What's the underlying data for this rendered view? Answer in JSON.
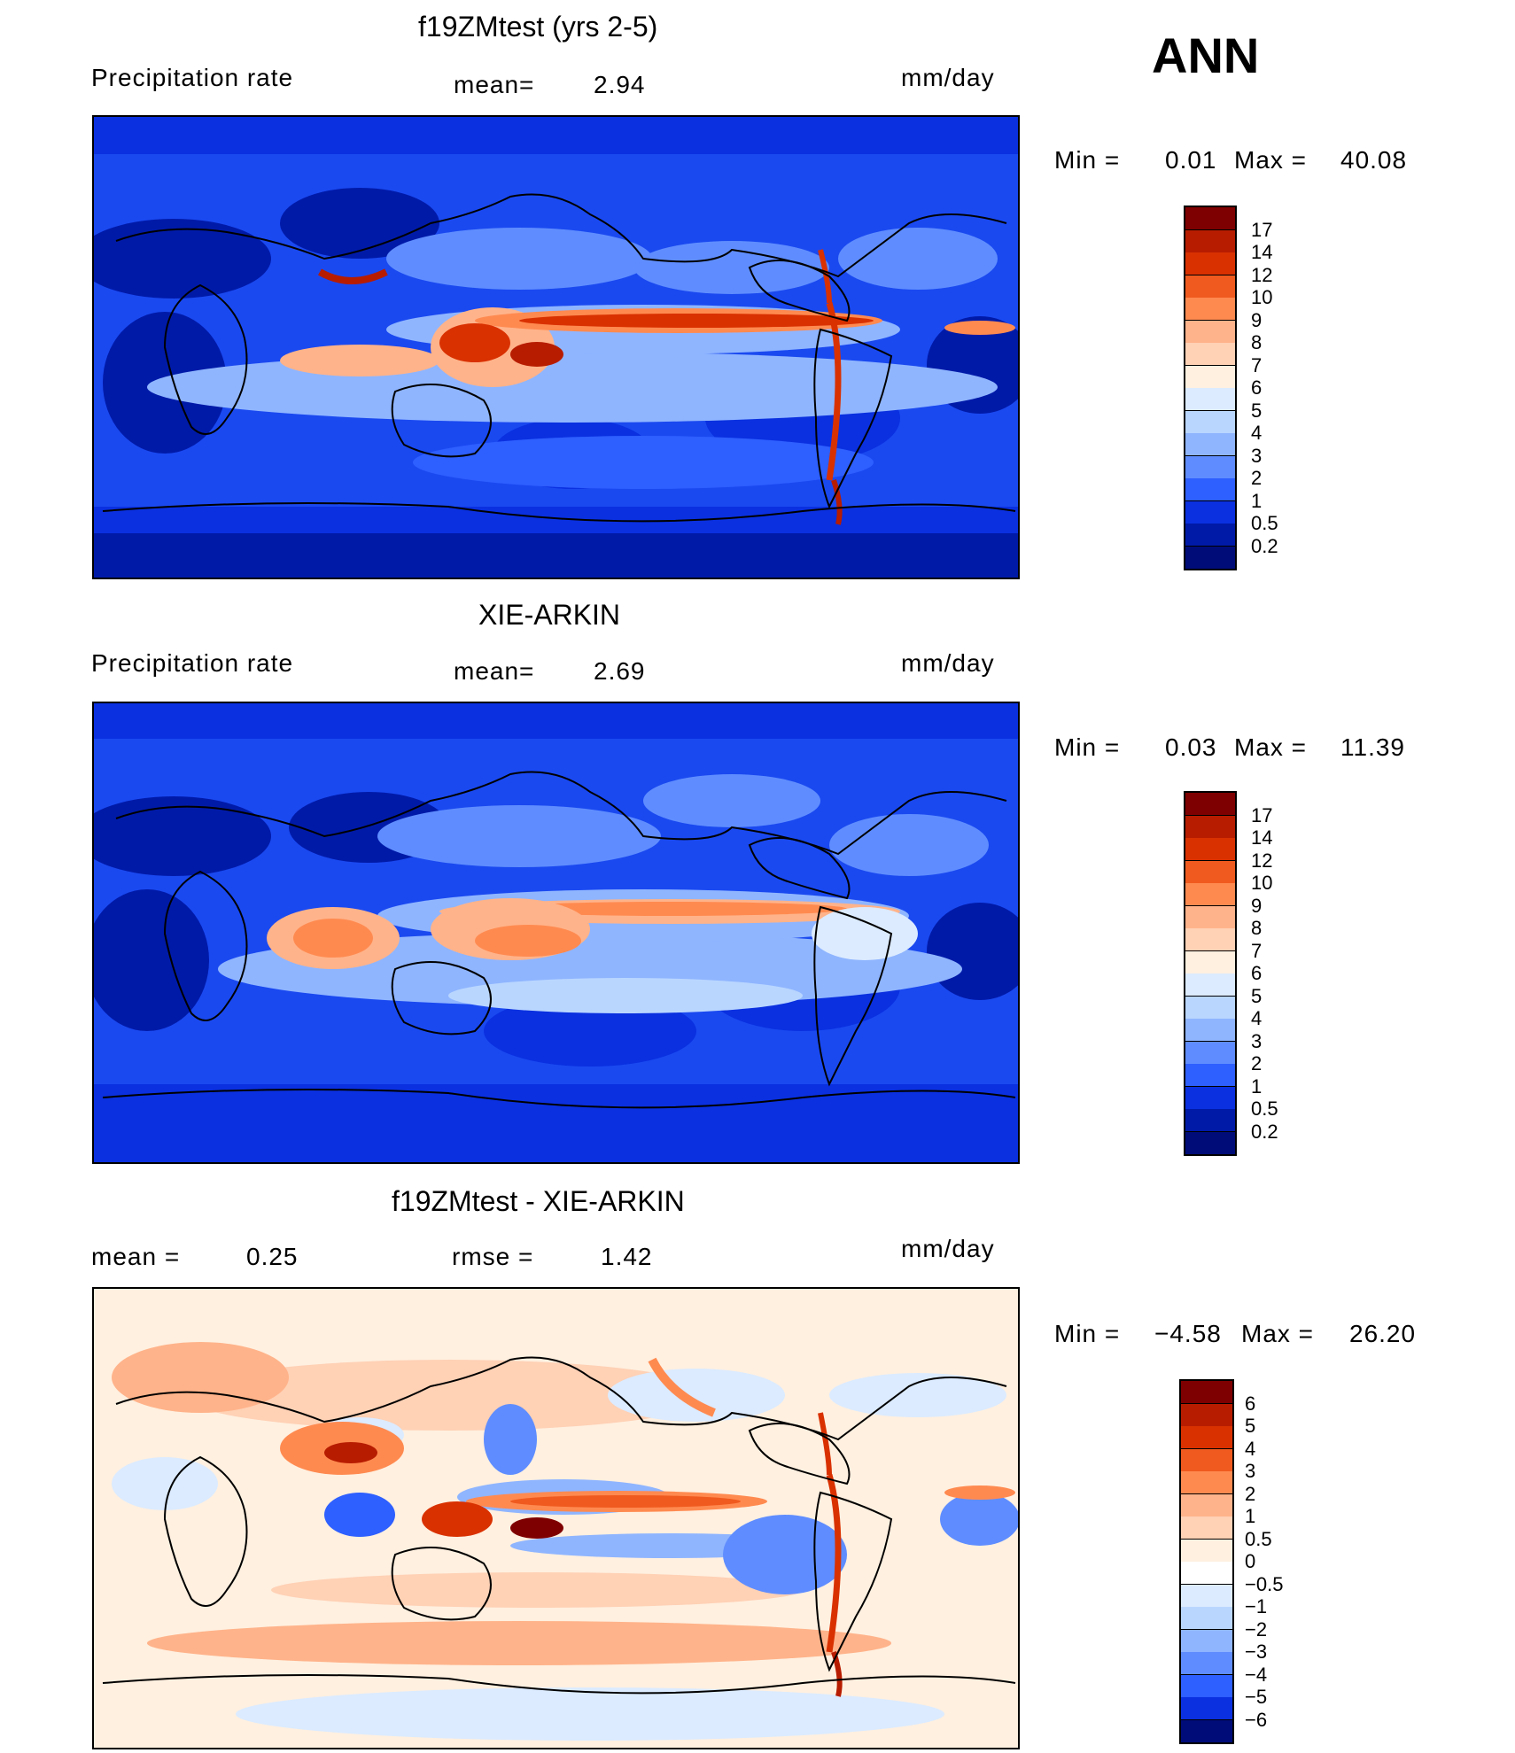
{
  "header": {
    "season": "ANN"
  },
  "panels": [
    {
      "title": "f19ZMtest (yrs 2-5)",
      "left_label": "Precipitation  rate",
      "center_label": "mean=",
      "center_value": "2.94",
      "units": "mm/day",
      "min_label": "Min  =",
      "min_value": "0.01",
      "max_label": "Max  =",
      "max_value": "40.08",
      "colorbar_ticks": [
        "17",
        "14",
        "12",
        "10",
        "9",
        "8",
        "7",
        "6",
        "5",
        "4",
        "3",
        "2",
        "1",
        "0.5",
        "0.2"
      ],
      "colorbar_colors": [
        "#7f0000",
        "#b71c00",
        "#d93100",
        "#f05a1e",
        "#ff8a50",
        "#ffb38a",
        "#ffd1b5",
        "#fff0e0",
        "#dcebff",
        "#b9d6ff",
        "#8fb5ff",
        "#5f8dff",
        "#2e5fff",
        "#0a30e0",
        "#001aa8",
        "#000c78"
      ]
    },
    {
      "title": "XIE-ARKIN",
      "left_label": "Precipitation  rate",
      "center_label": "mean=",
      "center_value": "2.69",
      "units": "mm/day",
      "min_label": "Min  =",
      "min_value": "0.03",
      "max_label": "Max  =",
      "max_value": "11.39",
      "colorbar_ticks": [
        "17",
        "14",
        "12",
        "10",
        "9",
        "8",
        "7",
        "6",
        "5",
        "4",
        "3",
        "2",
        "1",
        "0.5",
        "0.2"
      ],
      "colorbar_colors": [
        "#7f0000",
        "#b71c00",
        "#d93100",
        "#f05a1e",
        "#ff8a50",
        "#ffb38a",
        "#ffd1b5",
        "#fff0e0",
        "#dcebff",
        "#b9d6ff",
        "#8fb5ff",
        "#5f8dff",
        "#2e5fff",
        "#0a30e0",
        "#001aa8",
        "#000c78"
      ]
    },
    {
      "title": "f19ZMtest - XIE-ARKIN",
      "left_label": "mean  =",
      "left_value": "0.25",
      "center_label": "rmse  =",
      "center_value": "1.42",
      "units": "mm/day",
      "min_label": "Min  =",
      "min_value": "−4.58",
      "max_label": "Max  =",
      "max_value": "26.20",
      "colorbar_ticks": [
        "6",
        "5",
        "4",
        "3",
        "2",
        "1",
        "0.5",
        "0",
        "−0.5",
        "−1",
        "−2",
        "−3",
        "−4",
        "−5",
        "−6"
      ],
      "colorbar_colors": [
        "#7f0000",
        "#b71c00",
        "#d93100",
        "#f05a1e",
        "#ff8a50",
        "#ffb38a",
        "#ffd1b5",
        "#fff0e0",
        "#ffffff",
        "#dcebff",
        "#b9d6ff",
        "#8fb5ff",
        "#5f8dff",
        "#2e5fff",
        "#0a30e0",
        "#000c78"
      ]
    }
  ]
}
